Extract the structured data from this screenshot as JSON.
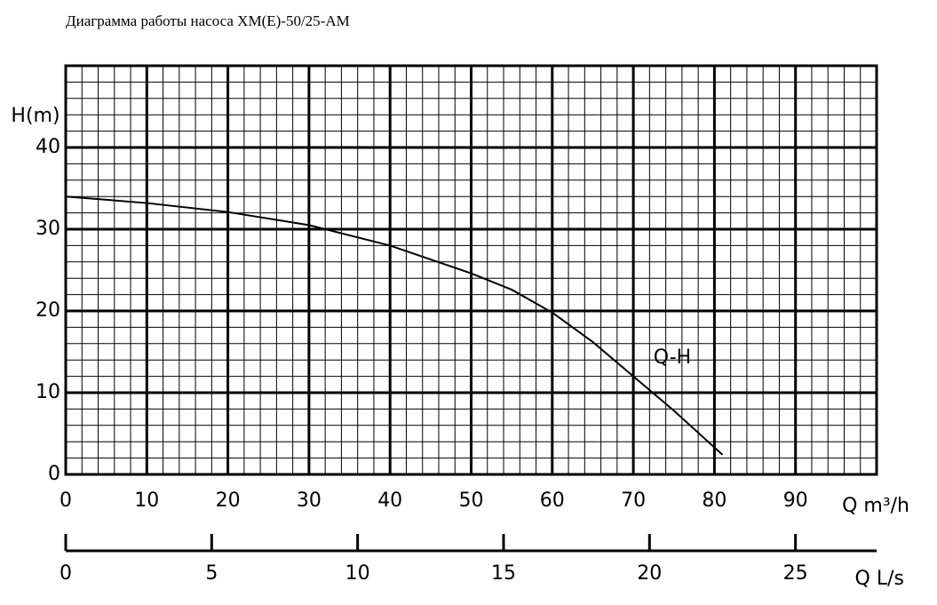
{
  "chart_data": {
    "type": "line",
    "title": "Диаграмма работы насоса XM(E)-50/25-AM",
    "y_label": "H(m)",
    "x_label": "Q m³/h",
    "x2_label": "Q L/s",
    "x": [
      0,
      10,
      20,
      30,
      40,
      50,
      55,
      60,
      65,
      70,
      75,
      81
    ],
    "series": [
      {
        "name": "Q-H",
        "color": "#000000",
        "values": [
          34,
          33.2,
          32.1,
          30.5,
          28,
          24.6,
          22.6,
          19.8,
          16.2,
          12,
          7.8,
          2.4
        ]
      }
    ],
    "xlim": [
      0,
      100
    ],
    "xticks": [
      0,
      10,
      20,
      30,
      40,
      50,
      60,
      70,
      80,
      90
    ],
    "xminorticks": [
      2,
      4,
      6,
      8,
      12,
      14,
      16,
      18,
      22,
      24,
      26,
      28,
      32,
      34,
      36,
      38,
      42,
      44,
      46,
      48,
      52,
      54,
      56,
      58,
      62,
      64,
      66,
      68,
      72,
      74,
      76,
      78,
      82,
      84,
      86,
      88,
      92,
      94,
      96,
      98
    ],
    "ylim": [
      0,
      50
    ],
    "yticks": [
      0,
      10,
      20,
      30,
      40
    ],
    "yminorticks": [
      2,
      4,
      6,
      8,
      12,
      14,
      16,
      18,
      22,
      24,
      26,
      28,
      32,
      34,
      36,
      38,
      42,
      44,
      46,
      48
    ],
    "x2lim": [
      0,
      27.78
    ],
    "x2ticks": [
      0,
      5,
      10,
      15,
      20,
      25
    ],
    "grid": true
  }
}
